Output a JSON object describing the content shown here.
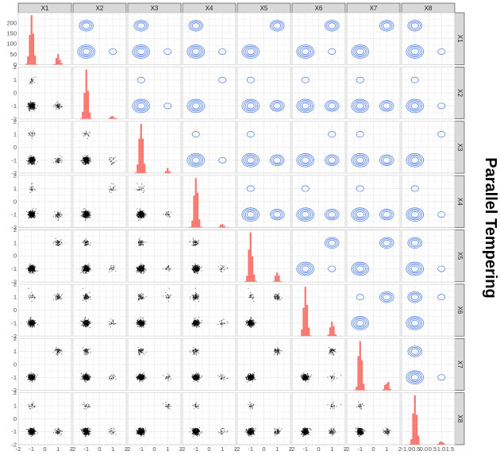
{
  "chart_data": {
    "type": "pairs",
    "title": "Parallel Tempering",
    "variables": [
      "X1",
      "X2",
      "X3",
      "X4",
      "X5",
      "X6",
      "X7",
      "X8"
    ],
    "panels": {
      "diagonal": "histogram",
      "lower": "scatter",
      "upper": "density2d-contour"
    },
    "grid": true,
    "x_range": [
      -2,
      2
    ],
    "y_range": [
      -2,
      2
    ],
    "y_ticks": [
      -2,
      -1,
      0,
      1,
      2
    ],
    "x_tick_labels": [
      "-2",
      "-1",
      "0",
      "1",
      "2"
    ],
    "diag_first_y_ticks": [
      0,
      50,
      100,
      150,
      200
    ],
    "x8_tick_labels": [
      "-1.0",
      "-0.5",
      "0.0",
      "0.5",
      "1.0",
      "1.5"
    ],
    "modes": [
      {
        "x": [
          -1,
          -1,
          -1,
          -1,
          -1,
          -1,
          -1,
          -1
        ],
        "weight": 0.7
      },
      {
        "x": [
          1,
          -1,
          -1,
          -1,
          1,
          1,
          1,
          -1
        ],
        "weight": 0.15
      },
      {
        "x": [
          -1,
          1,
          -1,
          1,
          -1,
          -1,
          -1,
          -1
        ],
        "weight": 0.08
      },
      {
        "x": [
          -1,
          -1,
          1,
          -1,
          -1,
          1,
          -1,
          1
        ],
        "weight": 0.07
      }
    ],
    "colors": {
      "histogram": "#F8766D",
      "contour": "#4A7BE0",
      "points": "#000000",
      "strip": "#D9D9D9",
      "strip_border": "#333333",
      "grid": "#EBEBEB"
    }
  }
}
